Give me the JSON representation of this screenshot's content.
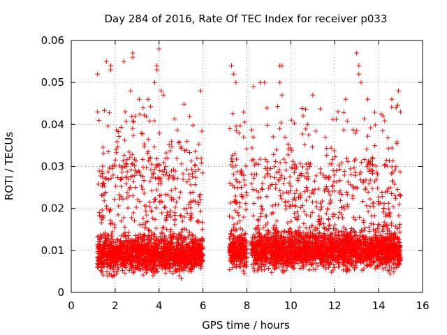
{
  "chart_data": {
    "type": "scatter",
    "title": "Day 284 of 2016, Rate Of TEC Index for receiver p033",
    "xlabel": "GPS time / hours",
    "ylabel": "ROTI / TECUs",
    "xlim": [
      0,
      16
    ],
    "ylim": [
      0,
      0.06
    ],
    "xticks": [
      0,
      2,
      4,
      6,
      8,
      10,
      12,
      14,
      16
    ],
    "xtick_labels": [
      "0",
      "2",
      "4",
      "6",
      "8",
      "10",
      "12",
      "14",
      "16"
    ],
    "yticks": [
      0,
      0.01,
      0.02,
      0.03,
      0.04,
      0.05,
      0.06
    ],
    "ytick_labels": [
      "0",
      "0.01",
      "0.02",
      "0.03",
      "0.04",
      "0.05",
      "0.06"
    ],
    "grid": true,
    "marker": "+",
    "color": "#ff0000",
    "series": [
      {
        "name": "ROTI",
        "segments": [
          {
            "t_start": 1.2,
            "t_end": 6.0,
            "n": 1900,
            "base": 0.009,
            "spread": 0.004
          },
          {
            "t_start": 7.2,
            "t_end": 8.0,
            "n": 320,
            "base": 0.01,
            "spread": 0.004
          },
          {
            "t_start": 8.2,
            "t_end": 15.0,
            "n": 2600,
            "base": 0.01,
            "spread": 0.004
          }
        ],
        "peaks": [
          [
            1.2,
            0.052
          ],
          [
            1.2,
            0.043
          ],
          [
            1.6,
            0.055
          ],
          [
            1.8,
            0.054
          ],
          [
            1.8,
            0.053
          ],
          [
            2.4,
            0.055
          ],
          [
            2.8,
            0.056
          ],
          [
            2.8,
            0.057
          ],
          [
            2.7,
            0.048
          ],
          [
            3.1,
            0.046
          ],
          [
            3.5,
            0.046
          ],
          [
            3.8,
            0.05
          ],
          [
            3.9,
            0.053
          ],
          [
            3.9,
            0.054
          ],
          [
            4.0,
            0.058
          ],
          [
            4.1,
            0.048
          ],
          [
            4.2,
            0.047
          ],
          [
            5.9,
            0.048
          ],
          [
            7.3,
            0.054
          ],
          [
            7.4,
            0.052
          ],
          [
            7.5,
            0.05
          ],
          [
            8.3,
            0.049
          ],
          [
            8.6,
            0.05
          ],
          [
            8.8,
            0.05
          ],
          [
            9.5,
            0.054
          ],
          [
            9.6,
            0.054
          ],
          [
            9.5,
            0.05
          ],
          [
            9.6,
            0.047
          ],
          [
            11.0,
            0.047
          ],
          [
            12.5,
            0.046
          ],
          [
            13.0,
            0.057
          ],
          [
            13.1,
            0.054
          ],
          [
            13.1,
            0.052
          ],
          [
            13.2,
            0.05
          ],
          [
            13.5,
            0.046
          ],
          [
            14.6,
            0.046
          ],
          [
            14.9,
            0.048
          ],
          [
            14.8,
            0.044
          ],
          [
            15.0,
            0.043
          ]
        ]
      }
    ]
  }
}
